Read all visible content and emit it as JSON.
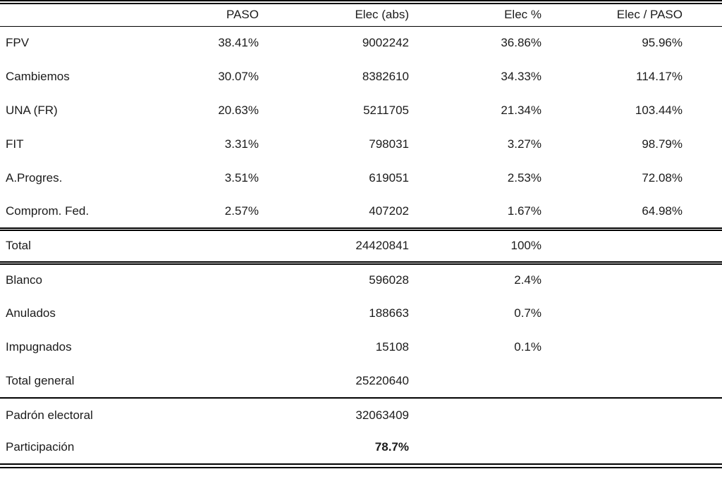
{
  "page": {
    "background": "#ffffff",
    "text_color": "#1b1b1b"
  },
  "table": {
    "columns": [
      "",
      "PASO",
      "Elec (abs)",
      "Elec %",
      "Elec / PASO"
    ],
    "sections": [
      {
        "name": "parties",
        "rows": [
          {
            "label": "FPV",
            "paso": "38.41%",
            "elec_abs": "9002242",
            "elec_pct": "36.86%",
            "elec_paso": "95.96%"
          },
          {
            "label": "Cambiemos",
            "paso": "30.07%",
            "elec_abs": "8382610",
            "elec_pct": "34.33%",
            "elec_paso": "114.17%"
          },
          {
            "label": "UNA (FR)",
            "paso": "20.63%",
            "elec_abs": "5211705",
            "elec_pct": "21.34%",
            "elec_paso": "103.44%"
          },
          {
            "label": "FIT",
            "paso": "3.31%",
            "elec_abs": "798031",
            "elec_pct": "3.27%",
            "elec_paso": "98.79%"
          },
          {
            "label": "A.Progres.",
            "paso": "3.51%",
            "elec_abs": "619051",
            "elec_pct": "2.53%",
            "elec_paso": "72.08%"
          },
          {
            "label": "Comprom. Fed.",
            "paso": "2.57%",
            "elec_abs": "407202",
            "elec_pct": "1.67%",
            "elec_paso": "64.98%"
          }
        ]
      },
      {
        "name": "total",
        "rows": [
          {
            "label": "Total",
            "paso": "",
            "elec_abs": "24420841",
            "elec_pct": "100%",
            "elec_paso": ""
          }
        ]
      },
      {
        "name": "other-votes",
        "rows": [
          {
            "label": "Blanco",
            "paso": "",
            "elec_abs": "596028",
            "elec_pct": "2.4%",
            "elec_paso": ""
          },
          {
            "label": "Anulados",
            "paso": "",
            "elec_abs": "188663",
            "elec_pct": "0.7%",
            "elec_paso": ""
          },
          {
            "label": "Impugnados",
            "paso": "",
            "elec_abs": "15108",
            "elec_pct": "0.1%",
            "elec_paso": ""
          },
          {
            "label": "Total general",
            "paso": "",
            "elec_abs": "25220640",
            "elec_pct": "",
            "elec_paso": ""
          }
        ]
      },
      {
        "name": "electorate",
        "rows": [
          {
            "label": "Padrón electoral",
            "paso": "",
            "elec_abs": "32063409",
            "elec_pct": "",
            "elec_paso": ""
          },
          {
            "label": "Participación",
            "paso": "",
            "elec_abs": "78.7%",
            "elec_abs_bold": true,
            "elec_pct": "",
            "elec_paso": ""
          }
        ]
      }
    ]
  }
}
